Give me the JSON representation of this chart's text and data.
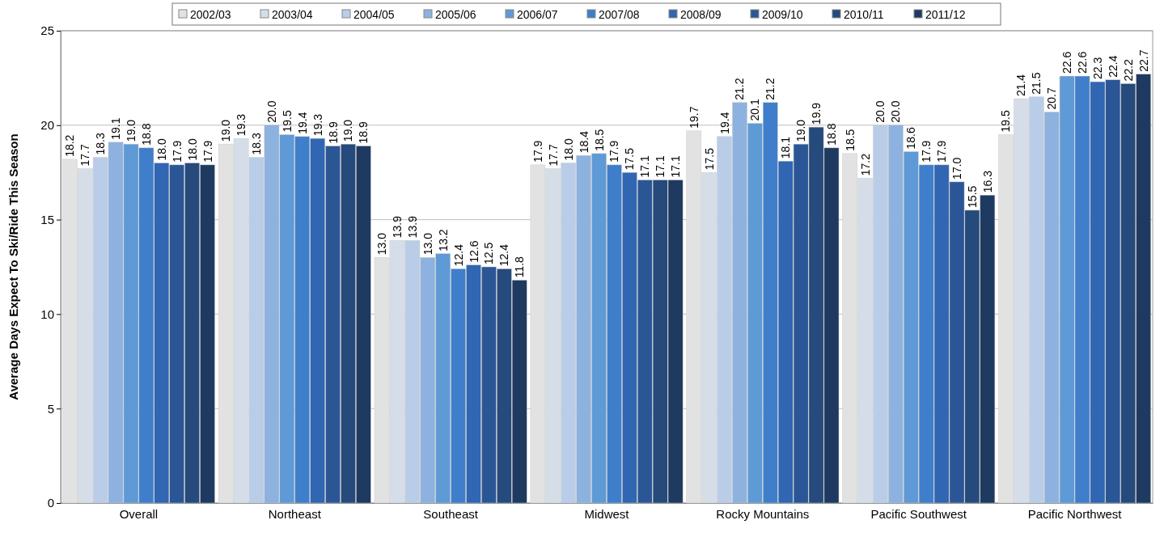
{
  "chart_data": {
    "type": "bar",
    "ylabel": "Average Days Expect To Ski/Ride This Season",
    "categories": [
      "Overall",
      "Northeast",
      "Southeast",
      "Midwest",
      "Rocky Mountains",
      "Pacific Southwest",
      "Pacific Northwest"
    ],
    "series": [
      {
        "name": "2002/03",
        "color": "#e2e2e2",
        "values": [
          18.2,
          19.0,
          13.0,
          17.9,
          19.7,
          18.5,
          19.5
        ],
        "value_labels": [
          "18.2",
          "19.0",
          "13.0",
          "17.9",
          "19.7",
          "18.5",
          "19.5"
        ]
      },
      {
        "name": "2003/04",
        "color": "#d5dde9",
        "values": [
          17.7,
          19.3,
          13.9,
          17.7,
          17.5,
          17.2,
          21.4
        ],
        "value_labels": [
          "17.7",
          "19.3",
          "13.9",
          "17.7",
          "17.5",
          "17.2",
          "21.4"
        ]
      },
      {
        "name": "2004/05",
        "color": "#b9cde8",
        "values": [
          18.3,
          18.3,
          13.9,
          18.0,
          19.4,
          20.0,
          21.5
        ],
        "value_labels": [
          "18.3",
          "18.3",
          "13.9",
          "18.0",
          "19.4",
          "20.0",
          "21.5"
        ]
      },
      {
        "name": "2005/06",
        "color": "#8db2e0",
        "values": [
          19.1,
          20.0,
          13.0,
          18.4,
          21.2,
          20.0,
          20.7
        ],
        "value_labels": [
          "19.1",
          "20.0",
          "13.0",
          "18.4",
          "21.2",
          "20.0",
          "20.7"
        ]
      },
      {
        "name": "2006/07",
        "color": "#5e9ad6",
        "values": [
          19.0,
          19.5,
          13.2,
          18.5,
          20.1,
          18.6,
          22.6
        ],
        "value_labels": [
          "19.0",
          "19.5",
          "13.2",
          "18.5",
          "20.1",
          "18.6",
          "22.6"
        ]
      },
      {
        "name": "2007/08",
        "color": "#3f7ecb",
        "values": [
          18.8,
          19.4,
          12.4,
          17.9,
          21.2,
          17.9,
          22.6
        ],
        "value_labels": [
          "18.8",
          "19.4",
          "12.4",
          "17.9",
          "21.2",
          "17.9",
          "22.6"
        ]
      },
      {
        "name": "2008/09",
        "color": "#3066b2",
        "values": [
          18.0,
          19.3,
          12.6,
          17.5,
          18.1,
          17.9,
          22.3
        ],
        "value_labels": [
          "18.0",
          "19.3",
          "12.6",
          "17.5",
          "18.1",
          "17.9",
          "22.3"
        ]
      },
      {
        "name": "2009/10",
        "color": "#2b5696",
        "values": [
          17.9,
          18.9,
          12.5,
          17.1,
          19.0,
          17.0,
          22.4
        ],
        "value_labels": [
          "17.9",
          "18.9",
          "12.5",
          "17.1",
          "19.0",
          "17.0",
          "22.4"
        ]
      },
      {
        "name": "2010/11",
        "color": "#254a7b",
        "values": [
          18.0,
          19.0,
          12.4,
          17.1,
          19.9,
          15.5,
          22.2
        ],
        "value_labels": [
          "18.0",
          "19.0",
          "12.4",
          "17.1",
          "19.9",
          "15.5",
          "22.2"
        ]
      },
      {
        "name": "2011/12",
        "color": "#1f3a60",
        "values": [
          17.9,
          18.9,
          11.8,
          17.1,
          18.8,
          16.3,
          22.7
        ],
        "value_labels": [
          "17.9",
          "18.9",
          "11.8",
          "17.1",
          "18.8",
          "16.3",
          "22.7"
        ]
      }
    ],
    "ylim": [
      0,
      25
    ],
    "yticks": [
      0,
      5,
      10,
      15,
      20,
      25
    ],
    "grid": "y",
    "legend": "top"
  }
}
